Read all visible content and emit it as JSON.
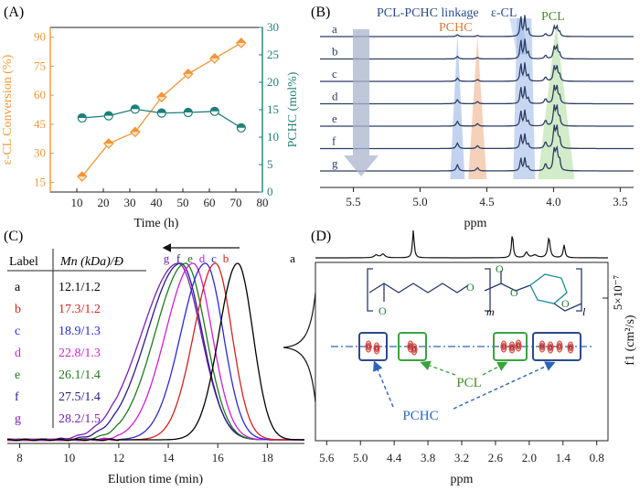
{
  "panels": {
    "A": "(A)",
    "B": "(B)",
    "C": "(C)",
    "D": "(D)"
  },
  "colors": {
    "orange": "#f0963a",
    "teal": "#1f7f7a",
    "navy": "#2c3e63",
    "blue_shade": "#9ab6e6",
    "orange_shade": "#f0b38a",
    "green_shade": "#bfe3b0",
    "arrow_gray": "#a9b4cc",
    "crosspeak_red": "#d3423a",
    "box_navy": "#2c4a8c",
    "box_green": "#3aa341",
    "label_green": "#4a8a2a",
    "label_blue": "#2a66b8"
  },
  "chart_data": [
    {
      "panel": "A",
      "type": "line",
      "xlabel": "Time (h)",
      "ylabel_left": "ε-CL Conversion (%)",
      "ylabel_right": "PCHC (mol%)",
      "xlim": [
        0,
        80
      ],
      "ylim_left": [
        10,
        95
      ],
      "ylim_right": [
        0,
        30
      ],
      "xticks": [
        "10",
        "20",
        "30",
        "40",
        "50",
        "60",
        "70",
        "80"
      ],
      "yticks_left": [
        "15",
        "30",
        "45",
        "60",
        "75",
        "90"
      ],
      "yticks_right": [
        "0",
        "5",
        "10",
        "15",
        "20",
        "25",
        "30"
      ],
      "series": [
        {
          "axis": "left",
          "x": [
            12,
            22,
            32,
            42,
            52,
            62,
            72
          ],
          "y": [
            18,
            35,
            41,
            59,
            71,
            79,
            87
          ]
        },
        {
          "axis": "right",
          "x": [
            12,
            22,
            32,
            42,
            52,
            62,
            72
          ],
          "y": [
            13.5,
            13.9,
            15.1,
            14.4,
            14.5,
            14.7,
            11.7
          ]
        }
      ]
    },
    {
      "panel": "B",
      "type": "line",
      "xlabel": "ppm",
      "xlim": [
        5.75,
        3.4
      ],
      "xticks": [
        "5.5",
        "5.0",
        "4.5",
        "4.0",
        "3.5"
      ],
      "trace_labels": [
        "a",
        "b",
        "c",
        "d",
        "e",
        "f",
        "g"
      ],
      "annotations": [
        "PCL-PCHC linkage",
        "ε-CL",
        "PCHC",
        "PCL"
      ],
      "peaks_ppm": [
        4.72,
        4.22,
        4.06,
        3.98,
        4.57
      ]
    },
    {
      "panel": "C",
      "type": "line",
      "xlabel": "Elution time (min)",
      "xlim": [
        7.5,
        19.5
      ],
      "xticks": [
        "8",
        "10",
        "12",
        "14",
        "16",
        "18"
      ],
      "table_headers": [
        "Label",
        "Mn (kDa)/Đ"
      ],
      "table_rows": [
        [
          "a",
          "12.1/1.2"
        ],
        [
          "b",
          "17.3/1.2"
        ],
        [
          "c",
          "18.9/1.3"
        ],
        [
          "d",
          "22.8/1.3"
        ],
        [
          "e",
          "26.1/1.4"
        ],
        [
          "f",
          "27.5/1.4"
        ],
        [
          "g",
          "28.2/1.5"
        ]
      ],
      "series": [
        {
          "name": "a",
          "color": "#000000",
          "peak_min": 16.8
        },
        {
          "name": "b",
          "color": "#d62020",
          "peak_min": 15.9
        },
        {
          "name": "c",
          "color": "#2a2ad6",
          "peak_min": 15.5
        },
        {
          "name": "d",
          "color": "#d020d0",
          "peak_min": 15.0
        },
        {
          "name": "e",
          "color": "#1e7a1e",
          "peak_min": 14.7
        },
        {
          "name": "f",
          "color": "#2a1a8a",
          "peak_min": 14.5
        },
        {
          "name": "g",
          "color": "#7a20b0",
          "peak_min": 14.4
        }
      ],
      "peak_labels": [
        "g",
        "f",
        "e",
        "d",
        "c",
        "b",
        "a"
      ]
    },
    {
      "panel": "D",
      "type": "heatmap",
      "xlabel": "ppm",
      "ylabel": "f1 (cm²/s)",
      "ytick": "5×10⁻⁷",
      "xlim": [
        5.8,
        0.6
      ],
      "xticks": [
        "5.6",
        "5.0",
        "4.4",
        "3.8",
        "3.2",
        "2.6",
        "2.0",
        "1.4",
        "0.8"
      ],
      "annotations": [
        "PCL",
        "PCHC"
      ],
      "structure_labels": [
        "O",
        "O",
        "O",
        "O",
        "O",
        "m",
        "l"
      ]
    }
  ]
}
